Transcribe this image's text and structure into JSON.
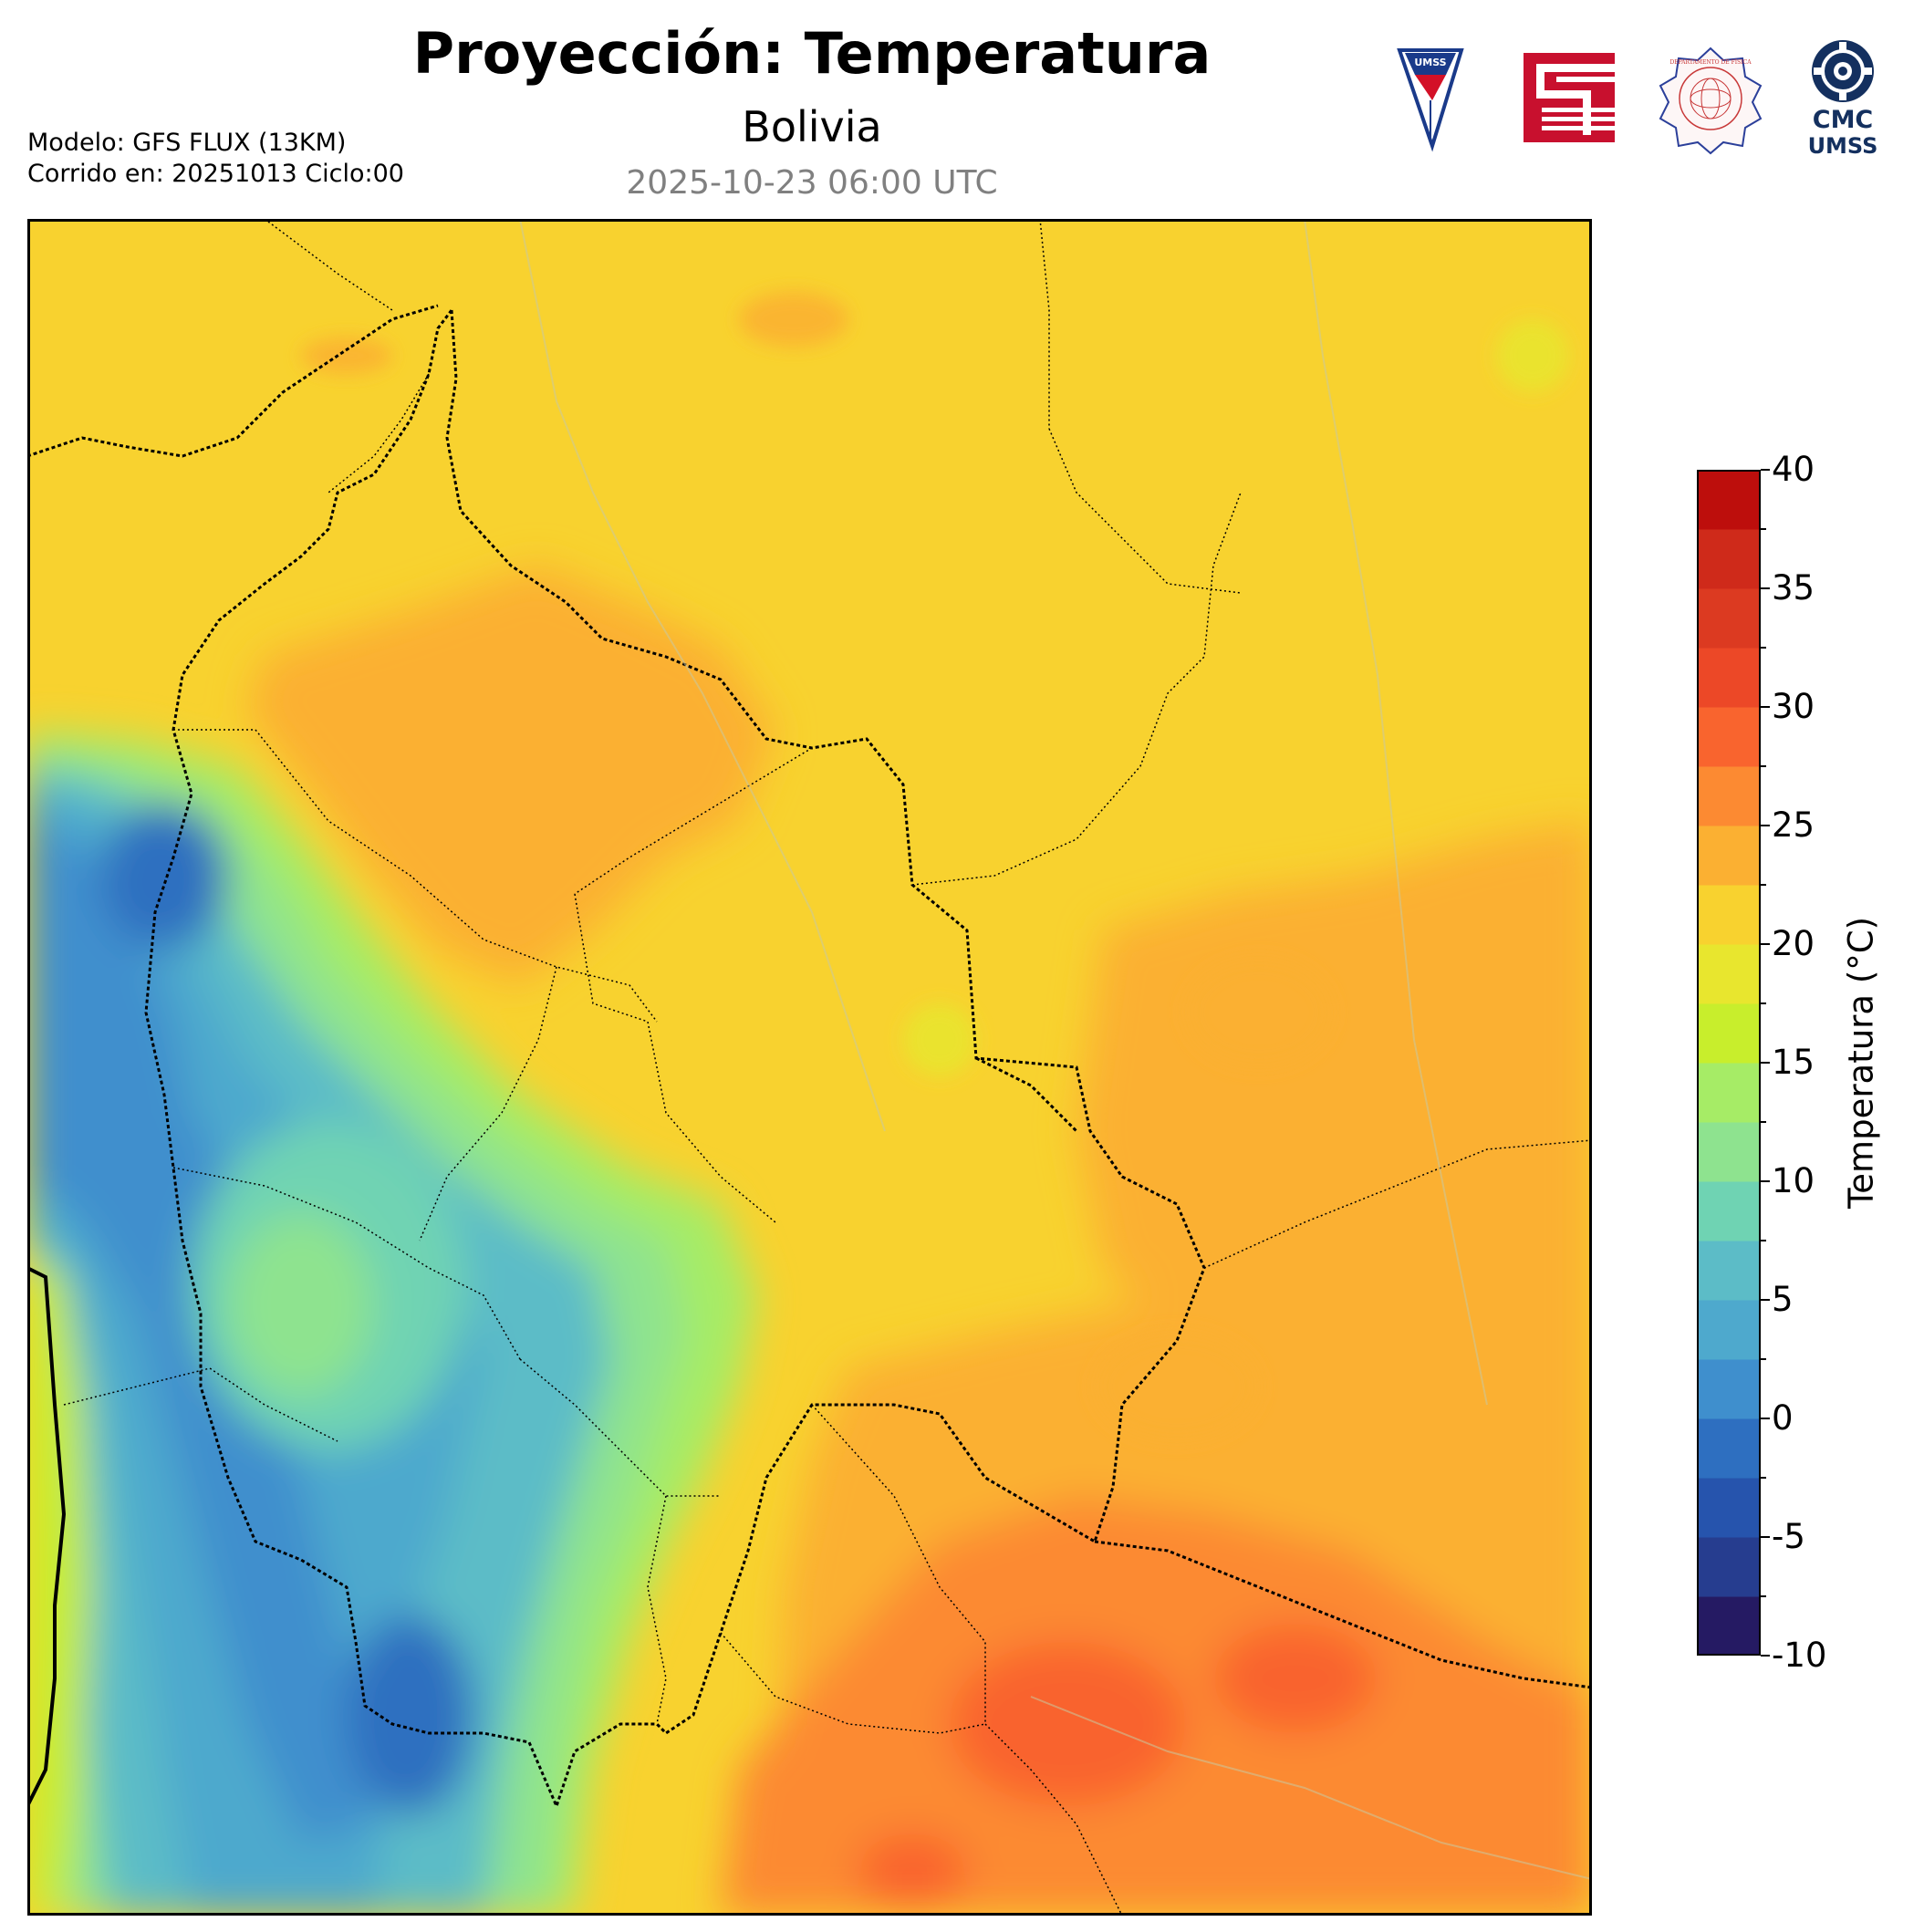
{
  "header": {
    "title": "Proyección: Temperatura",
    "subtitle": "Bolivia",
    "datetime": "2025-10-23 06:00 UTC"
  },
  "model_info": {
    "line1": "Modelo: GFS FLUX (13KM)",
    "line2": "Corrido en: 20251013 Ciclo:00"
  },
  "logos": {
    "umss_shield_text": "UMSS",
    "cmc_line1": "CMC",
    "cmc_line2": "UMSS",
    "dept_seal_text": "DEPARTAMENTO DE FÍSICA"
  },
  "colorbar": {
    "label": "Temperatura (°C)",
    "ticks": [
      "-10",
      "-5",
      "0",
      "5",
      "10",
      "15",
      "20",
      "25",
      "30",
      "35",
      "40"
    ],
    "range": [
      -10,
      40
    ],
    "level_step": 2.5,
    "colors": [
      "#251a63",
      "#263d8f",
      "#2654ad",
      "#2e6fc0",
      "#3f8fcd",
      "#4ea9cd",
      "#5cbcc7",
      "#6fd3b3",
      "#8ee38f",
      "#a6ec66",
      "#c8ee2c",
      "#e8e62e",
      "#f8d22f",
      "#fbb032",
      "#fc8a32",
      "#f9642e",
      "#ec4827",
      "#dc3a21",
      "#cf2a1a",
      "#bd0e0c"
    ]
  },
  "map": {
    "region": "Bolivia",
    "field": "Temperatura",
    "units": "°C",
    "dominant_colors": {
      "ocean_coast_cool": "#8ee38f",
      "altiplano_cold": "#4ea9cd",
      "lowlands_warm": "#f8d22f",
      "chaco_hot": "#fc8a32",
      "hot_spots": "#f9642e"
    }
  }
}
